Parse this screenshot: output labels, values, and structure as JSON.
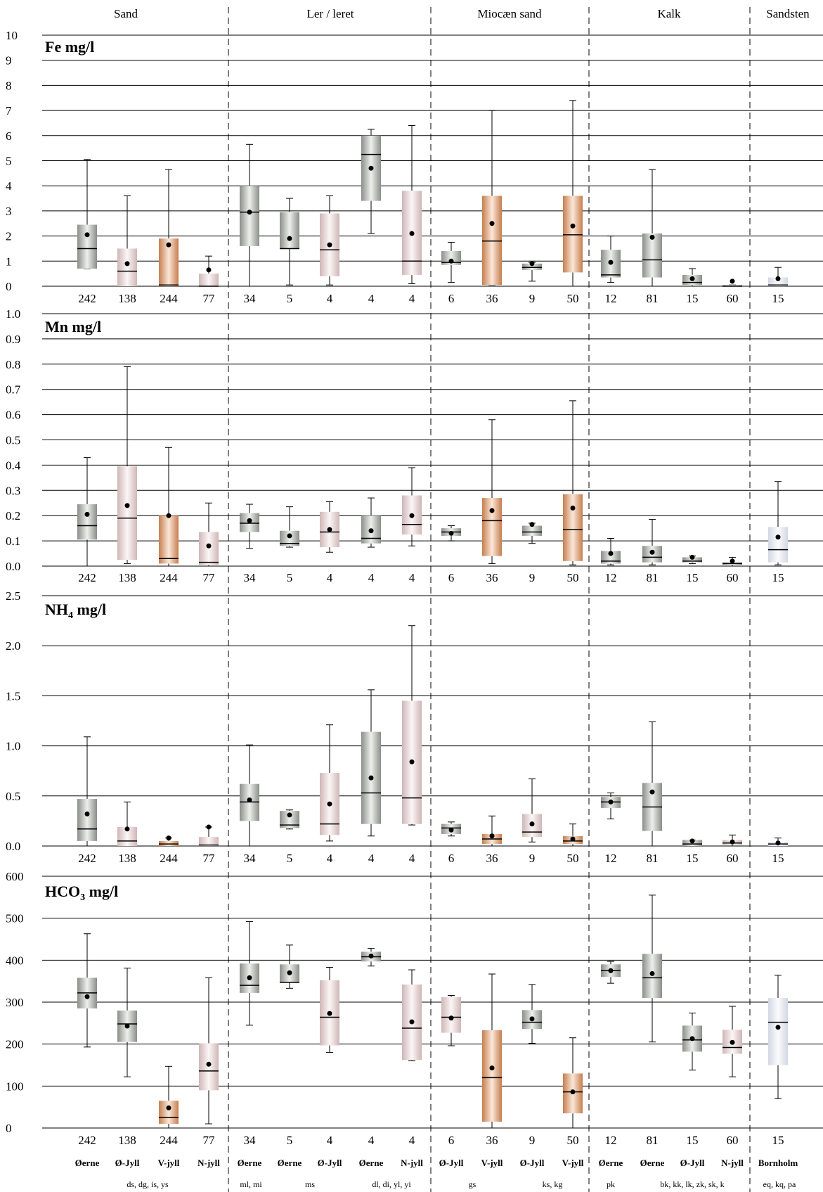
{
  "chart_data": {
    "type": "boxplot",
    "groups": [
      "Sand",
      "Ler / leret",
      "Miocæn sand",
      "Kalk",
      "Sandsten"
    ],
    "regions": [
      "Øerne",
      "Ø-Jyll",
      "V-jyll",
      "N-jyll",
      "Øerne",
      "Øerne",
      "Ø-Jyll",
      "Øerne",
      "N-jyll",
      "Ø-Jyll",
      "V-jyll",
      "Ø-Jyll",
      "V-jyll",
      "Øerne",
      "Øerne",
      "Ø-Jyll",
      "N-jyll",
      "Bornholm"
    ],
    "codes": [
      "ds, dg, is, ys",
      "ml, mi",
      "ms",
      "dl, di, yl, yi",
      "gs",
      "ks, kg",
      "pk",
      "bk, kk, lk, zk, sk, k",
      "eq, kq, pa"
    ],
    "counts": [
      "242",
      "138",
      "244",
      "77",
      "34",
      "5",
      "4",
      "4",
      "4",
      "6",
      "36",
      "9",
      "50",
      "12",
      "81",
      "15",
      "60",
      "15"
    ],
    "colors": {
      "grey": "#a6aaa4",
      "copper": "#d4946a",
      "pink": "#dcc4c4",
      "blue": "#d8dce8"
    },
    "panels": [
      {
        "label": "Fe mg/l",
        "ylim": [
          0,
          10
        ],
        "ticks": [
          "0",
          "1",
          "2",
          "3",
          "4",
          "5",
          "6",
          "7",
          "8",
          "9",
          "10"
        ],
        "boxes": [
          {
            "q1": 0.7,
            "median": 1.5,
            "q3": 2.45,
            "whisker_low": 0.7,
            "whisker_high": 5.05,
            "mean": 2.05,
            "color": "grey"
          },
          {
            "q1": 0.0,
            "median": 0.6,
            "q3": 1.5,
            "whisker_low": 0.0,
            "whisker_high": 3.6,
            "mean": 0.9,
            "color": "pink"
          },
          {
            "q1": 0.0,
            "median": 0.05,
            "q3": 1.9,
            "whisker_low": 0.0,
            "whisker_high": 4.65,
            "mean": 1.65,
            "color": "copper"
          },
          {
            "q1": 0.0,
            "median": 0.0,
            "q3": 0.5,
            "whisker_low": 0.0,
            "whisker_high": 1.2,
            "mean": 0.65,
            "color": "pink"
          },
          {
            "q1": 1.6,
            "median": 2.95,
            "q3": 4.0,
            "whisker_low": 0.0,
            "whisker_high": 5.65,
            "mean": 2.95,
            "color": "grey"
          },
          {
            "q1": 1.5,
            "median": 1.5,
            "q3": 2.95,
            "whisker_low": 0.05,
            "whisker_high": 3.5,
            "mean": 1.9,
            "color": "grey"
          },
          {
            "q1": 0.4,
            "median": 1.45,
            "q3": 2.9,
            "whisker_low": 0.05,
            "whisker_high": 3.6,
            "mean": 1.65,
            "color": "pink"
          },
          {
            "q1": 3.4,
            "median": 5.25,
            "q3": 6.0,
            "whisker_low": 2.1,
            "whisker_high": 6.25,
            "mean": 4.7,
            "color": "grey"
          },
          {
            "q1": 0.45,
            "median": 1.0,
            "q3": 3.8,
            "whisker_low": 0.1,
            "whisker_high": 6.4,
            "mean": 2.1,
            "color": "pink"
          },
          {
            "q1": 0.85,
            "median": 0.95,
            "q3": 1.4,
            "whisker_low": 0.15,
            "whisker_high": 1.75,
            "mean": 1.0,
            "color": "grey"
          },
          {
            "q1": 0.05,
            "median": 1.8,
            "q3": 3.6,
            "whisker_low": 0.05,
            "whisker_high": 7.0,
            "mean": 2.5,
            "color": "copper"
          },
          {
            "q1": 0.65,
            "median": 0.75,
            "q3": 0.9,
            "whisker_low": 0.2,
            "whisker_high": 0.95,
            "mean": 0.9,
            "color": "grey"
          },
          {
            "q1": 0.55,
            "median": 2.05,
            "q3": 3.6,
            "whisker_low": 0.0,
            "whisker_high": 7.4,
            "mean": 2.4,
            "color": "copper"
          },
          {
            "q1": 0.35,
            "median": 0.45,
            "q3": 1.45,
            "whisker_low": 0.15,
            "whisker_high": 2.0,
            "mean": 0.95,
            "color": "grey"
          },
          {
            "q1": 0.35,
            "median": 1.05,
            "q3": 2.1,
            "whisker_low": 0.0,
            "whisker_high": 4.65,
            "mean": 1.95,
            "color": "grey"
          },
          {
            "q1": 0.05,
            "median": 0.15,
            "q3": 0.45,
            "whisker_low": 0.0,
            "whisker_high": 0.7,
            "mean": 0.3,
            "color": "grey"
          },
          {
            "q1": 0.0,
            "median": 0.0,
            "q3": 0.05,
            "whisker_low": 0.0,
            "whisker_high": 0.05,
            "mean": 0.2,
            "color": "grey"
          },
          {
            "q1": 0.0,
            "median": 0.05,
            "q3": 0.35,
            "whisker_low": 0.0,
            "whisker_high": 0.75,
            "mean": 0.3,
            "color": "blue"
          }
        ]
      },
      {
        "label": "Mn mg/l",
        "ylim": [
          0,
          1.0
        ],
        "ticks": [
          "0.0",
          "0.1",
          "0.2",
          "0.3",
          "0.4",
          "0.5",
          "0.6",
          "0.7",
          "0.8",
          "0.9",
          "1.0"
        ],
        "boxes": [
          {
            "q1": 0.105,
            "median": 0.16,
            "q3": 0.245,
            "whisker_low": 0.0,
            "whisker_high": 0.43,
            "mean": 0.205,
            "color": "grey"
          },
          {
            "q1": 0.025,
            "median": 0.19,
            "q3": 0.395,
            "whisker_low": 0.01,
            "whisker_high": 0.79,
            "mean": 0.24,
            "color": "pink"
          },
          {
            "q1": 0.01,
            "median": 0.03,
            "q3": 0.2,
            "whisker_low": 0.0,
            "whisker_high": 0.47,
            "mean": 0.2,
            "color": "copper"
          },
          {
            "q1": 0.005,
            "median": 0.015,
            "q3": 0.135,
            "whisker_low": 0.0,
            "whisker_high": 0.25,
            "mean": 0.08,
            "color": "pink"
          },
          {
            "q1": 0.135,
            "median": 0.17,
            "q3": 0.21,
            "whisker_low": 0.07,
            "whisker_high": 0.245,
            "mean": 0.18,
            "color": "grey"
          },
          {
            "q1": 0.08,
            "median": 0.09,
            "q3": 0.14,
            "whisker_low": 0.075,
            "whisker_high": 0.235,
            "mean": 0.12,
            "color": "grey"
          },
          {
            "q1": 0.075,
            "median": 0.135,
            "q3": 0.215,
            "whisker_low": 0.055,
            "whisker_high": 0.255,
            "mean": 0.145,
            "color": "pink"
          },
          {
            "q1": 0.09,
            "median": 0.11,
            "q3": 0.2,
            "whisker_low": 0.075,
            "whisker_high": 0.27,
            "mean": 0.14,
            "color": "grey"
          },
          {
            "q1": 0.125,
            "median": 0.165,
            "q3": 0.28,
            "whisker_low": 0.08,
            "whisker_high": 0.39,
            "mean": 0.2,
            "color": "pink"
          },
          {
            "q1": 0.12,
            "median": 0.135,
            "q3": 0.15,
            "whisker_low": 0.1,
            "whisker_high": 0.16,
            "mean": 0.13,
            "color": "grey"
          },
          {
            "q1": 0.04,
            "median": 0.18,
            "q3": 0.27,
            "whisker_low": 0.01,
            "whisker_high": 0.58,
            "mean": 0.22,
            "color": "copper"
          },
          {
            "q1": 0.12,
            "median": 0.135,
            "q3": 0.16,
            "whisker_low": 0.09,
            "whisker_high": 0.17,
            "mean": 0.165,
            "color": "grey"
          },
          {
            "q1": 0.02,
            "median": 0.145,
            "q3": 0.285,
            "whisker_low": 0.005,
            "whisker_high": 0.655,
            "mean": 0.23,
            "color": "copper"
          },
          {
            "q1": 0.01,
            "median": 0.02,
            "q3": 0.06,
            "whisker_low": 0.005,
            "whisker_high": 0.11,
            "mean": 0.05,
            "color": "grey"
          },
          {
            "q1": 0.015,
            "median": 0.035,
            "q3": 0.08,
            "whisker_low": 0.005,
            "whisker_high": 0.185,
            "mean": 0.055,
            "color": "grey"
          },
          {
            "q1": 0.015,
            "median": 0.02,
            "q3": 0.035,
            "whisker_low": 0.01,
            "whisker_high": 0.04,
            "mean": 0.035,
            "color": "grey"
          },
          {
            "q1": 0.005,
            "median": 0.01,
            "q3": 0.015,
            "whisker_low": 0.0,
            "whisker_high": 0.035,
            "mean": 0.02,
            "color": "grey"
          },
          {
            "q1": 0.015,
            "median": 0.065,
            "q3": 0.155,
            "whisker_low": 0.005,
            "whisker_high": 0.335,
            "mean": 0.115,
            "color": "blue"
          }
        ]
      },
      {
        "label": "NH",
        "label_sub": "4",
        "label_unit": " mg/l",
        "ylim": [
          0,
          2.5
        ],
        "ticks": [
          "0.0",
          "0.5",
          "1.0",
          "1.5",
          "2.0",
          "2.5"
        ],
        "boxes": [
          {
            "q1": 0.05,
            "median": 0.17,
            "q3": 0.47,
            "whisker_low": 0.0,
            "whisker_high": 1.09,
            "mean": 0.32,
            "color": "grey"
          },
          {
            "q1": 0.0,
            "median": 0.05,
            "q3": 0.19,
            "whisker_low": 0.0,
            "whisker_high": 0.44,
            "mean": 0.17,
            "color": "pink"
          },
          {
            "q1": 0.0,
            "median": 0.02,
            "q3": 0.05,
            "whisker_low": 0.0,
            "whisker_high": 0.08,
            "mean": 0.08,
            "color": "copper"
          },
          {
            "q1": 0.0,
            "median": 0.01,
            "q3": 0.09,
            "whisker_low": 0.0,
            "whisker_high": 0.19,
            "mean": 0.19,
            "color": "pink"
          },
          {
            "q1": 0.25,
            "median": 0.44,
            "q3": 0.62,
            "whisker_low": 0.0,
            "whisker_high": 1.01,
            "mean": 0.46,
            "color": "grey"
          },
          {
            "q1": 0.18,
            "median": 0.21,
            "q3": 0.35,
            "whisker_low": 0.17,
            "whisker_high": 0.36,
            "mean": 0.31,
            "color": "grey"
          },
          {
            "q1": 0.11,
            "median": 0.22,
            "q3": 0.73,
            "whisker_low": 0.05,
            "whisker_high": 1.21,
            "mean": 0.42,
            "color": "pink"
          },
          {
            "q1": 0.22,
            "median": 0.53,
            "q3": 1.14,
            "whisker_low": 0.1,
            "whisker_high": 1.56,
            "mean": 0.68,
            "color": "grey"
          },
          {
            "q1": 0.22,
            "median": 0.48,
            "q3": 1.45,
            "whisker_low": 0.21,
            "whisker_high": 2.2,
            "mean": 0.84,
            "color": "pink"
          },
          {
            "q1": 0.12,
            "median": 0.18,
            "q3": 0.22,
            "whisker_low": 0.1,
            "whisker_high": 0.24,
            "mean": 0.16,
            "color": "grey"
          },
          {
            "q1": 0.02,
            "median": 0.07,
            "q3": 0.12,
            "whisker_low": 0.0,
            "whisker_high": 0.3,
            "mean": 0.1,
            "color": "copper"
          },
          {
            "q1": 0.09,
            "median": 0.14,
            "q3": 0.32,
            "whisker_low": 0.04,
            "whisker_high": 0.67,
            "mean": 0.22,
            "color": "pink"
          },
          {
            "q1": 0.02,
            "median": 0.05,
            "q3": 0.1,
            "whisker_low": 0.0,
            "whisker_high": 0.22,
            "mean": 0.07,
            "color": "copper"
          },
          {
            "q1": 0.38,
            "median": 0.44,
            "q3": 0.49,
            "whisker_low": 0.27,
            "whisker_high": 0.53,
            "mean": 0.44,
            "color": "grey"
          },
          {
            "q1": 0.15,
            "median": 0.39,
            "q3": 0.63,
            "whisker_low": 0.0,
            "whisker_high": 1.24,
            "mean": 0.54,
            "color": "grey"
          },
          {
            "q1": 0.0,
            "median": 0.02,
            "q3": 0.06,
            "whisker_low": 0.0,
            "whisker_high": 0.06,
            "mean": 0.05,
            "color": "grey"
          },
          {
            "q1": 0.01,
            "median": 0.03,
            "q3": 0.06,
            "whisker_low": 0.0,
            "whisker_high": 0.11,
            "mean": 0.04,
            "color": "pink"
          },
          {
            "q1": 0.0,
            "median": 0.02,
            "q3": 0.04,
            "whisker_low": 0.0,
            "whisker_high": 0.08,
            "mean": 0.03,
            "color": "blue"
          }
        ]
      },
      {
        "label": "HCO",
        "label_sub": "3",
        "label_unit": " mg/l",
        "ylim": [
          0,
          600
        ],
        "ticks": [
          "0",
          "100",
          "200",
          "300",
          "400",
          "500",
          "600"
        ],
        "boxes": [
          {
            "q1": 285,
            "median": 322,
            "q3": 358,
            "whisker_low": 193,
            "whisker_high": 463,
            "mean": 313,
            "color": "grey"
          },
          {
            "q1": 205,
            "median": 248,
            "q3": 280,
            "whisker_low": 122,
            "whisker_high": 381,
            "mean": 243,
            "color": "grey"
          },
          {
            "q1": 10,
            "median": 25,
            "q3": 65,
            "whisker_low": 0,
            "whisker_high": 147,
            "mean": 48,
            "color": "copper"
          },
          {
            "q1": 90,
            "median": 136,
            "q3": 202,
            "whisker_low": 10,
            "whisker_high": 358,
            "mean": 152,
            "color": "pink"
          },
          {
            "q1": 322,
            "median": 340,
            "q3": 392,
            "whisker_low": 245,
            "whisker_high": 492,
            "mean": 358,
            "color": "grey"
          },
          {
            "q1": 347,
            "median": 347,
            "q3": 390,
            "whisker_low": 333,
            "whisker_high": 436,
            "mean": 370,
            "color": "grey"
          },
          {
            "q1": 197,
            "median": 264,
            "q3": 352,
            "whisker_low": 180,
            "whisker_high": 383,
            "mean": 273,
            "color": "pink"
          },
          {
            "q1": 397,
            "median": 408,
            "q3": 420,
            "whisker_low": 386,
            "whisker_high": 428,
            "mean": 410,
            "color": "grey"
          },
          {
            "q1": 162,
            "median": 238,
            "q3": 342,
            "whisker_low": 160,
            "whisker_high": 377,
            "mean": 253,
            "color": "pink"
          },
          {
            "q1": 227,
            "median": 264,
            "q3": 312,
            "whisker_low": 196,
            "whisker_high": 316,
            "mean": 262,
            "color": "pink"
          },
          {
            "q1": 15,
            "median": 120,
            "q3": 233,
            "whisker_low": 0,
            "whisker_high": 367,
            "mean": 143,
            "color": "copper"
          },
          {
            "q1": 236,
            "median": 252,
            "q3": 281,
            "whisker_low": 202,
            "whisker_high": 342,
            "mean": 260,
            "color": "grey"
          },
          {
            "q1": 35,
            "median": 86,
            "q3": 130,
            "whisker_low": 0,
            "whisker_high": 215,
            "mean": 86,
            "color": "copper"
          },
          {
            "q1": 360,
            "median": 375,
            "q3": 390,
            "whisker_low": 345,
            "whisker_high": 397,
            "mean": 375,
            "color": "grey"
          },
          {
            "q1": 310,
            "median": 358,
            "q3": 415,
            "whisker_low": 205,
            "whisker_high": 555,
            "mean": 368,
            "color": "grey"
          },
          {
            "q1": 182,
            "median": 210,
            "q3": 244,
            "whisker_low": 138,
            "whisker_high": 274,
            "mean": 213,
            "color": "grey"
          },
          {
            "q1": 177,
            "median": 192,
            "q3": 234,
            "whisker_low": 122,
            "whisker_high": 290,
            "mean": 204,
            "color": "pink"
          },
          {
            "q1": 150,
            "median": 252,
            "q3": 310,
            "whisker_low": 70,
            "whisker_high": 364,
            "mean": 240,
            "color": "blue"
          }
        ]
      }
    ]
  }
}
